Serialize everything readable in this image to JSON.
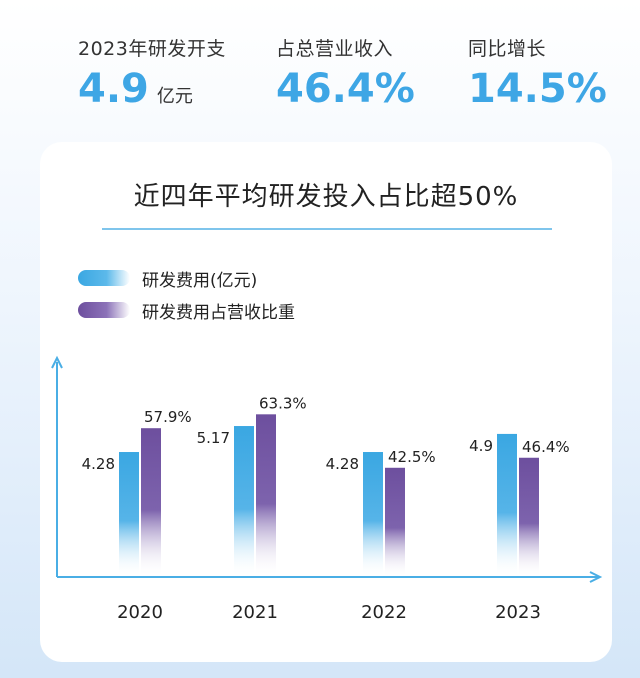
{
  "stats": [
    {
      "label": "2023年研发开支",
      "value": "4.9",
      "unit": "亿元"
    },
    {
      "label": "占总营业收入",
      "value": "46.4%"
    },
    {
      "label": "同比增长",
      "value": "14.5%"
    }
  ],
  "chart_data": {
    "type": "bar",
    "title": "近四年平均研发投入占比超50%",
    "categories": [
      "2020",
      "2021",
      "2022",
      "2023"
    ],
    "series": [
      {
        "name": "研发费用(亿元)",
        "values": [
          4.28,
          5.17,
          4.28,
          4.9
        ],
        "labels": [
          "4.28",
          "5.17",
          "4.28",
          "4.9"
        ],
        "color": "#3aa7e2"
      },
      {
        "name": "研发费用占营收比重",
        "values": [
          57.9,
          63.3,
          42.5,
          46.4
        ],
        "labels": [
          "57.9%",
          "63.3%",
          "42.5%",
          "46.4%"
        ],
        "color": "#6d4f9e"
      }
    ],
    "legend": "top-left",
    "grid": false,
    "colors": {
      "blue": "#3aa7e2",
      "purple": "#6d4f9e",
      "axis": "#4aaee5"
    }
  }
}
